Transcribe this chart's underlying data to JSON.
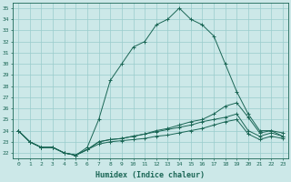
{
  "xlabel": "Humidex (Indice chaleur)",
  "background_color": "#cce8e8",
  "grid_color": "#99cccc",
  "line_color": "#1a6655",
  "xlim": [
    -0.5,
    23.5
  ],
  "ylim": [
    21.5,
    35.5
  ],
  "xticks": [
    0,
    1,
    2,
    3,
    4,
    5,
    6,
    7,
    8,
    9,
    10,
    11,
    12,
    13,
    14,
    15,
    16,
    17,
    18,
    19,
    20,
    21,
    22,
    23
  ],
  "yticks": [
    22,
    23,
    24,
    25,
    26,
    27,
    28,
    29,
    30,
    31,
    32,
    33,
    34,
    35
  ],
  "lines": [
    {
      "x": [
        0,
        1,
        2,
        3,
        4,
        5,
        6,
        7,
        8,
        9,
        10,
        11,
        12,
        13,
        14,
        15,
        16,
        17,
        18,
        19,
        20,
        21,
        22,
        23
      ],
      "y": [
        24.0,
        23.0,
        22.5,
        22.5,
        22.0,
        21.8,
        22.5,
        25.0,
        28.5,
        30.0,
        31.5,
        32.0,
        33.5,
        34.0,
        35.0,
        34.0,
        33.5,
        32.5,
        30.0,
        27.5,
        25.5,
        24.0,
        24.0,
        23.5
      ]
    },
    {
      "x": [
        0,
        1,
        2,
        3,
        4,
        5,
        6,
        7,
        8,
        9,
        10,
        11,
        12,
        13,
        14,
        15,
        16,
        17,
        18,
        19,
        20,
        21,
        22,
        23
      ],
      "y": [
        24.0,
        23.0,
        22.5,
        22.5,
        22.0,
        21.8,
        22.3,
        23.0,
        23.2,
        23.3,
        23.5,
        23.7,
        24.0,
        24.2,
        24.5,
        24.8,
        25.0,
        25.5,
        26.2,
        26.5,
        25.2,
        23.8,
        24.0,
        23.8
      ]
    },
    {
      "x": [
        0,
        1,
        2,
        3,
        4,
        5,
        6,
        7,
        8,
        9,
        10,
        11,
        12,
        13,
        14,
        15,
        16,
        17,
        18,
        19,
        20,
        21,
        22,
        23
      ],
      "y": [
        24.0,
        23.0,
        22.5,
        22.5,
        22.0,
        21.8,
        22.3,
        23.0,
        23.2,
        23.3,
        23.5,
        23.7,
        23.9,
        24.1,
        24.3,
        24.5,
        24.8,
        25.0,
        25.2,
        25.5,
        24.0,
        23.5,
        23.8,
        23.5
      ]
    },
    {
      "x": [
        0,
        1,
        2,
        3,
        4,
        5,
        6,
        7,
        8,
        9,
        10,
        11,
        12,
        13,
        14,
        15,
        16,
        17,
        18,
        19,
        20,
        21,
        22,
        23
      ],
      "y": [
        24.0,
        23.0,
        22.5,
        22.5,
        22.0,
        21.8,
        22.3,
        22.8,
        23.0,
        23.1,
        23.2,
        23.3,
        23.5,
        23.6,
        23.8,
        24.0,
        24.2,
        24.5,
        24.8,
        25.0,
        23.7,
        23.2,
        23.5,
        23.3
      ]
    }
  ]
}
